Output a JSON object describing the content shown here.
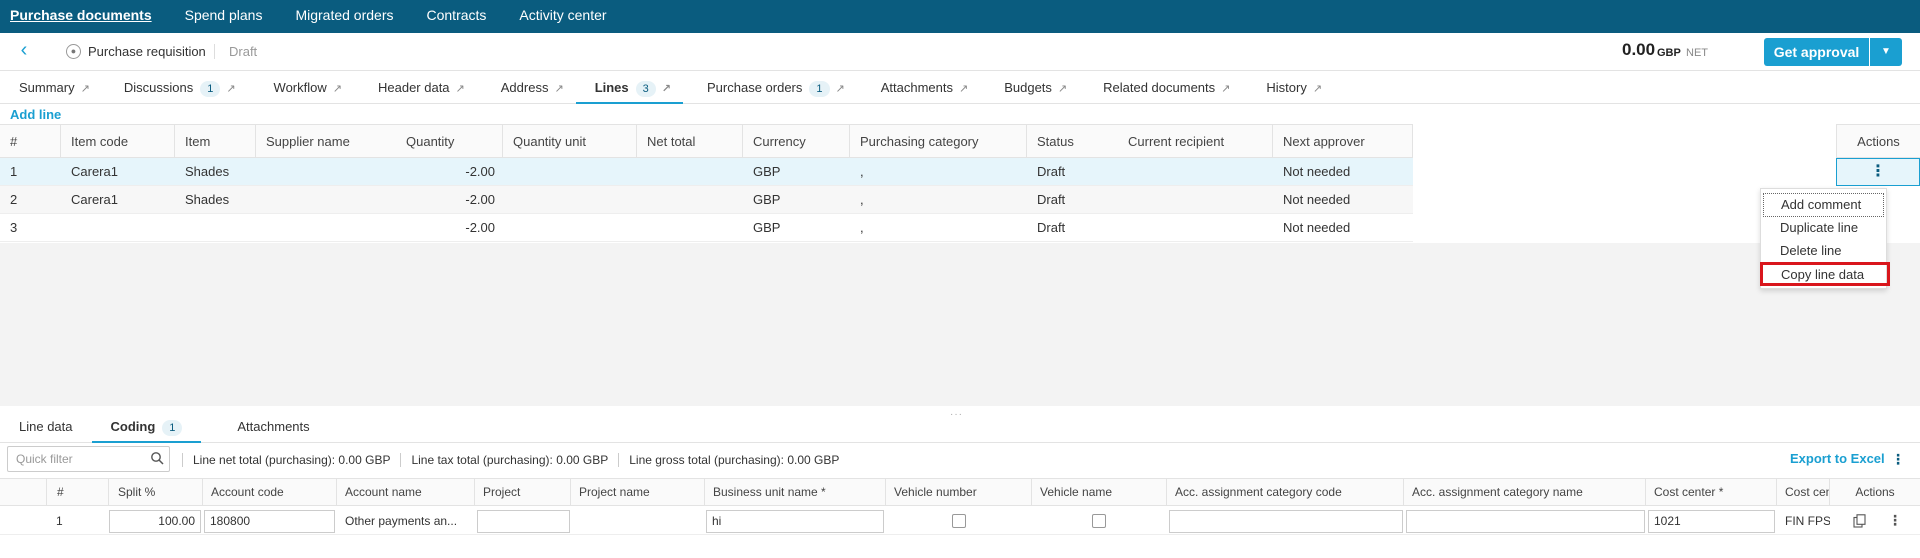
{
  "topnav": {
    "items": [
      "Purchase documents",
      "Spend plans",
      "Migrated orders",
      "Contracts",
      "Activity center"
    ]
  },
  "header": {
    "doc_type": "Purchase requisition",
    "status": "Draft",
    "total_amount": "0.00",
    "total_currency": "GBP",
    "total_net": "NET",
    "approval_label": "Get approval"
  },
  "tabs": [
    {
      "label": "Summary",
      "badge": ""
    },
    {
      "label": "Discussions",
      "badge": "1"
    },
    {
      "label": "Workflow",
      "badge": ""
    },
    {
      "label": "Header data",
      "badge": ""
    },
    {
      "label": "Address",
      "badge": ""
    },
    {
      "label": "Lines",
      "badge": "3"
    },
    {
      "label": "Purchase orders",
      "badge": "1"
    },
    {
      "label": "Attachments",
      "badge": ""
    },
    {
      "label": "Budgets",
      "badge": ""
    },
    {
      "label": "Related documents",
      "badge": ""
    },
    {
      "label": "History",
      "badge": ""
    }
  ],
  "lines": {
    "add_line_label": "Add line",
    "columns": [
      "#",
      "Item code",
      "Item",
      "Supplier name",
      "Quantity",
      "Quantity unit",
      "Net total",
      "Currency",
      "Purchasing category",
      "Status",
      "Current recipient",
      "Next approver"
    ],
    "actions_label": "Actions",
    "rows": [
      {
        "num": "1",
        "item_code": "Carera1",
        "item": "Shades",
        "supplier": "",
        "quantity": "-2.00",
        "qty_unit": "",
        "net_total": "",
        "currency": "GBP",
        "category": ",",
        "status": "Draft",
        "recipient": "",
        "next_approver": "Not needed"
      },
      {
        "num": "2",
        "item_code": "Carera1",
        "item": "Shades",
        "supplier": "",
        "quantity": "-2.00",
        "qty_unit": "",
        "net_total": "",
        "currency": "GBP",
        "category": ",",
        "status": "Draft",
        "recipient": "",
        "next_approver": "Not needed"
      },
      {
        "num": "3",
        "item_code": "",
        "item": "",
        "supplier": "",
        "quantity": "-2.00",
        "qty_unit": "",
        "net_total": "",
        "currency": "GBP",
        "category": ",",
        "status": "Draft",
        "recipient": "",
        "next_approver": "Not needed"
      }
    ]
  },
  "context_menu": {
    "items": [
      "Add comment",
      "Duplicate line",
      "Delete line",
      "Copy line data"
    ]
  },
  "bottom": {
    "tabs": [
      {
        "label": "Line data",
        "badge": ""
      },
      {
        "label": "Coding",
        "badge": "1"
      },
      {
        "label": "Attachments",
        "badge": ""
      }
    ],
    "filter_placeholder": "Quick filter",
    "totals": [
      "Line net total (purchasing): 0.00 GBP",
      "Line tax total (purchasing): 0.00 GBP",
      "Line gross total (purchasing): 0.00 GBP"
    ],
    "export_label": "Export to Excel",
    "columns": [
      "#",
      "Split %",
      "Account code",
      "Account name",
      "Project",
      "Project name",
      "Business unit name *",
      "Vehicle number",
      "Vehicle name",
      "Acc. assignment category code",
      "Acc. assignment category name",
      "Cost center *",
      "Cost cent",
      "Actions"
    ],
    "row": {
      "num": "1",
      "split": "100.00",
      "account_code": "180800",
      "account_name": "Other payments an...",
      "project": "",
      "project_name": "",
      "business_unit": "hi",
      "acc_cat_code": "",
      "acc_cat_name": "",
      "cost_center": "1021",
      "cost_center_name": "FIN FPS F"
    }
  }
}
